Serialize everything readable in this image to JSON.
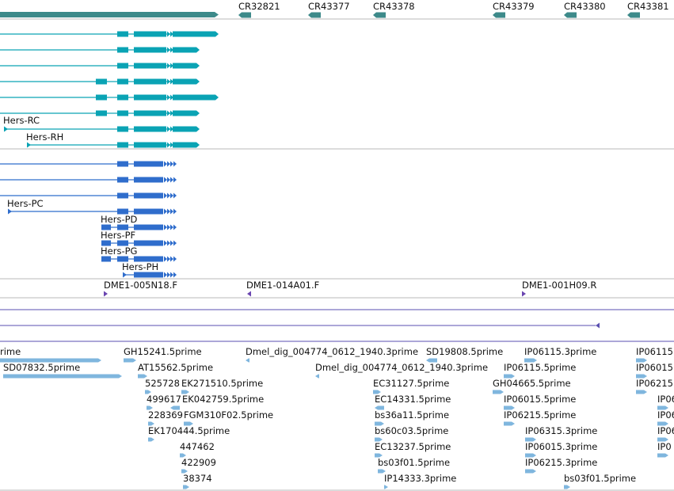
{
  "colors": {
    "gene": "#3d8a8a",
    "transcript_rna": "#0aa3b4",
    "transcript_protein": "#2f6dcc",
    "clone": "#6a45b0",
    "line": "#5a4fb0",
    "est": "#7fb6de",
    "divider": "#b8b8b8"
  },
  "genes": [
    "CR32821",
    "CR43377",
    "CR43378",
    "CR43379",
    "CR43380",
    "CR43381"
  ],
  "rna_transcripts": [
    {
      "label": ""
    },
    {
      "label": ""
    },
    {
      "label": ""
    },
    {
      "label": ""
    },
    {
      "label": ""
    },
    {
      "label": ""
    },
    {
      "label": "Hers-RC"
    },
    {
      "label": "Hers-RH"
    }
  ],
  "protein_transcripts": [
    {
      "label": ""
    },
    {
      "label": ""
    },
    {
      "label": ""
    },
    {
      "label": "Hers-PC"
    },
    {
      "label": "Hers-PD"
    },
    {
      "label": "Hers-PF"
    },
    {
      "label": "Hers-PG"
    },
    {
      "label": "Hers-PH"
    }
  ],
  "clones": [
    "DME1-005N18.F",
    "DME1-014A01.F",
    "DME1-001H09.R"
  ],
  "ests": [
    "rime",
    "GH15241.5prime",
    "Dmel_dig_004774_0612_1940.3prime",
    "SD19808.5prime",
    "IP06115.3prime",
    "IP06115",
    "SD07832.5prime",
    "AT15562.5prime",
    "Dmel_dig_004774_0612_1940.3prime",
    "IP06115.5prime",
    "IP06015",
    "525728",
    "EK271510.5prime",
    "EC31127.5prime",
    "GH04665.5prime",
    "IP06215",
    "499617",
    "EK042759.5prime",
    "EC14331.5prime",
    "IP06015.5prime",
    "IP06",
    "228369",
    "FGM310F02.5prime",
    "bs36a11.5prime",
    "IP06215.5prime",
    "IP06",
    "EK170444.5prime",
    "bs60c03.5prime",
    "IP06315.3prime",
    "IP06",
    "447462",
    "EC13237.5prime",
    "IP06015.3prime",
    "IP0",
    "422909",
    "bs03f01.5prime",
    "IP06215.3prime",
    "38374",
    "IP14333.3prime",
    "bs03f01.5prime"
  ]
}
